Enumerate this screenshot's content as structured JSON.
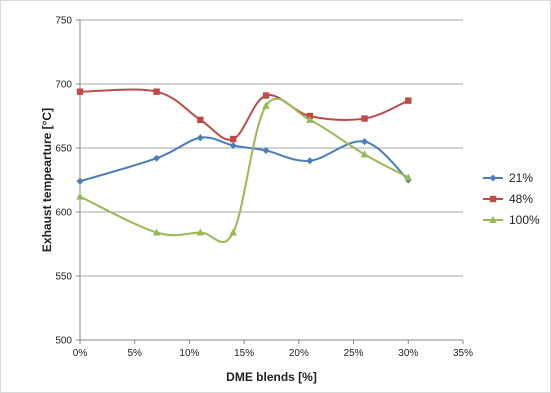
{
  "chart_data": {
    "type": "line",
    "xlabel": "DME blends [%]",
    "ylabel": "Exhaust tempearture [°C]",
    "xlim": [
      0,
      35
    ],
    "ylim": [
      500,
      750
    ],
    "x_ticks": [
      0,
      5,
      10,
      15,
      20,
      25,
      30,
      35
    ],
    "x_tick_labels": [
      "0%",
      "5%",
      "10%",
      "15%",
      "20%",
      "25%",
      "30%",
      "35%"
    ],
    "y_ticks": [
      500,
      550,
      600,
      650,
      700,
      750
    ],
    "y_tick_labels": [
      "500",
      "550",
      "600",
      "650",
      "700",
      "750"
    ],
    "grid": "horizontal",
    "legend_position": "right",
    "series": [
      {
        "name": "21%",
        "color": "#4a7ebb",
        "marker": "diamond",
        "x": [
          0,
          7,
          11,
          14,
          17,
          21,
          26,
          30
        ],
        "y": [
          624,
          642,
          658,
          652,
          648,
          640,
          655,
          625
        ]
      },
      {
        "name": "48%",
        "color": "#be4b48",
        "marker": "square",
        "x": [
          0,
          7,
          11,
          14,
          17,
          21,
          26,
          30
        ],
        "y": [
          694,
          694,
          672,
          657,
          691,
          675,
          673,
          687
        ]
      },
      {
        "name": "100%",
        "color": "#98b954",
        "marker": "triangle",
        "x": [
          0,
          7,
          11,
          14,
          17,
          21,
          26,
          30
        ],
        "y": [
          612,
          584,
          584,
          584,
          683,
          672,
          645,
          627
        ]
      }
    ]
  }
}
